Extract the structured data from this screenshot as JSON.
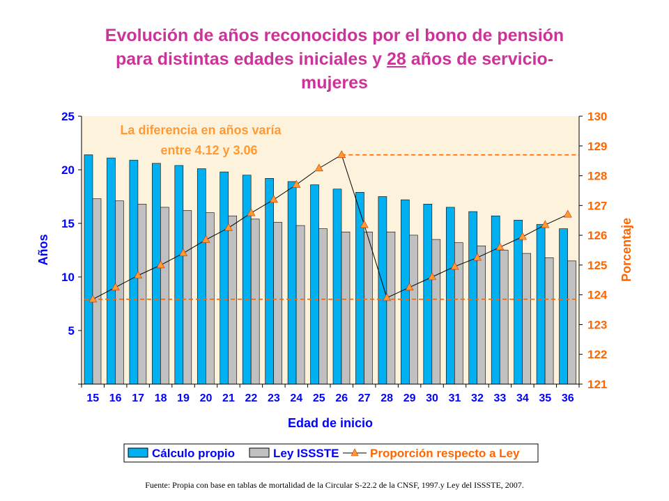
{
  "title": {
    "line1": "Evolución de años reconocidos por el bono de pensión",
    "line2_prefix": "para distintas edades iniciales y ",
    "line2_underlined": "28",
    "line2_suffix": " años de servicio-",
    "line3": "mujeres"
  },
  "annotation": {
    "line1": "La diferencia en años varía",
    "line2": "entre 4.12 y 3.06"
  },
  "footer": "Fuente: Propia con base en tablas de mortalidad de la Circular S-22.2 de la CNSF, 1997.y Ley del ISSSTE, 2007.",
  "colors": {
    "title": "#cc3399",
    "series1": "#00b0f0",
    "series2": "#c0c0c0",
    "line": "#000000",
    "marker": "#ff9933",
    "left_axis_text": "#0000ff",
    "right_axis_text": "#ff6600",
    "plot_bg": "#fdf3dc"
  },
  "chart_data": {
    "type": "bar",
    "xlabel": "Edad de inicio",
    "ylabel": "Años",
    "y2label": "Porcentaje",
    "ylim": [
      0,
      25
    ],
    "yticks": [
      "5",
      "10",
      "15",
      "20",
      "25"
    ],
    "y2lim": [
      121,
      130
    ],
    "y2ticks": [
      "121",
      "122",
      "123",
      "124",
      "125",
      "126",
      "127",
      "128",
      "129",
      "130"
    ],
    "categories": [
      "15",
      "16",
      "17",
      "18",
      "19",
      "20",
      "21",
      "22",
      "23",
      "24",
      "25",
      "26",
      "27",
      "28",
      "29",
      "30",
      "31",
      "32",
      "33",
      "34",
      "35",
      "36"
    ],
    "series": [
      {
        "name": "Cálculo propio",
        "type": "bar",
        "axis": "left",
        "values": [
          21.4,
          21.1,
          20.9,
          20.6,
          20.4,
          20.1,
          19.8,
          19.5,
          19.2,
          18.9,
          18.6,
          18.2,
          17.9,
          17.5,
          17.2,
          16.8,
          16.5,
          16.1,
          15.7,
          15.3,
          14.9,
          14.5
        ]
      },
      {
        "name": "Ley ISSSTE",
        "type": "bar",
        "axis": "left",
        "values": [
          17.3,
          17.1,
          16.8,
          16.5,
          16.2,
          16.0,
          15.7,
          15.4,
          15.1,
          14.8,
          14.5,
          14.2,
          14.2,
          14.2,
          13.9,
          13.5,
          13.2,
          12.9,
          12.5,
          12.2,
          11.8,
          11.5
        ]
      },
      {
        "name": "Proporción respecto a Ley",
        "type": "line",
        "axis": "right",
        "values": [
          123.85,
          124.25,
          124.65,
          125.0,
          125.4,
          125.85,
          126.25,
          126.75,
          127.2,
          127.7,
          128.25,
          128.7,
          126.35,
          123.9,
          124.25,
          124.6,
          124.95,
          125.25,
          125.6,
          125.95,
          126.35,
          126.7
        ]
      }
    ],
    "reference_lines": [
      {
        "axis": "right",
        "value": 128.7
      },
      {
        "axis": "right",
        "value": 123.85
      }
    ],
    "legend_position": "bottom",
    "grid": false
  }
}
